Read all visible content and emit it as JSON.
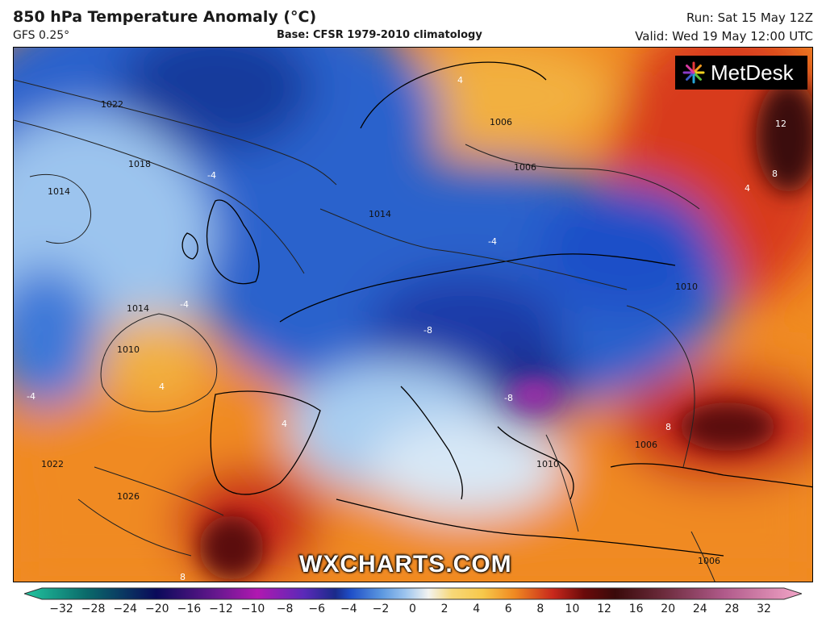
{
  "header": {
    "title": "850 hPa Temperature Anomaly (°C)",
    "model": "GFS 0.25°",
    "base": "Base: CFSR 1979-2010 climatology",
    "run": "Run: Sat 15 May 12Z",
    "valid": "Valid: Wed 19 May 12:00 UTC"
  },
  "logo": {
    "text": "MetDesk",
    "icon": "starburst-logo-icon"
  },
  "watermark": "WXCHARTS.COM",
  "map": {
    "isobar_labels": [
      "1022",
      "1018",
      "1014",
      "1014",
      "1010",
      "1026",
      "1022",
      "1014",
      "1006",
      "1006",
      "1010",
      "1010",
      "1006",
      "1006"
    ],
    "anomaly_labels": [
      "-4",
      "-4",
      "-4",
      "-8",
      "-8",
      "4",
      "4",
      "8",
      "8",
      "12",
      "4",
      "4",
      "-4",
      "8"
    ]
  },
  "colorbar": {
    "ticks": [
      "−32",
      "−28",
      "−24",
      "−20",
      "−16",
      "−12",
      "−10",
      "−8",
      "−6",
      "−4",
      "−2",
      "0",
      "2",
      "4",
      "6",
      "8",
      "10",
      "12",
      "16",
      "20",
      "24",
      "28",
      "32"
    ],
    "colors": {
      "min_end": "#22c6a0",
      "deep_cold": "#0a0a5a",
      "magenta": "#b018b0",
      "blue": "#1f4fc8",
      "light_blue": "#9cc4ee",
      "neutral": "#f3f3f0",
      "yellow": "#f7c84a",
      "orange": "#f08a22",
      "red": "#c8281c",
      "dark_red": "#3a0a0a",
      "max_end": "#f3a6c8"
    }
  }
}
